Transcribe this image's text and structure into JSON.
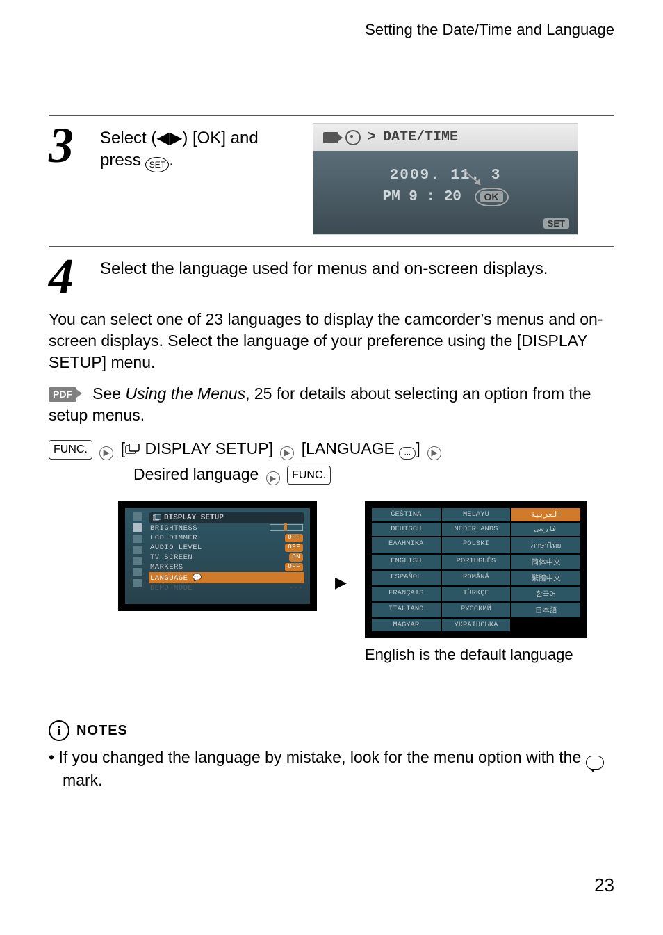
{
  "header": {
    "section": "Setting the Date/Time and Language"
  },
  "step3": {
    "num": "3",
    "text_a": "Select (",
    "text_b": ") [OK] and press ",
    "text_c": ".",
    "osd": {
      "crumb_prefix": ">",
      "crumb": "DATE/TIME",
      "date_line": "2009. 11.  3",
      "time_line": "PM  9 : 20",
      "ok": "OK",
      "set": "SET"
    }
  },
  "step4": {
    "num": "4",
    "text": "Select the language used for menus and on-screen displays."
  },
  "para1": "You can select one of 23 languages to display the camcorder’s menus and on-screen displays. Select the language of your preference using the [DISPLAY SETUP] menu.",
  "pdf": {
    "badge": "PDF",
    "text_a": " See ",
    "text_b": "Using the Menus",
    "text_c": ", 25 for details about selecting an option from the setup menus."
  },
  "path": {
    "func": "FUNC.",
    "display_setup": "DISPLAY SETUP",
    "language": "LANGUAGE",
    "desired": "Desired language"
  },
  "display_setup_shot": {
    "title": "DISPLAY SETUP",
    "rows": [
      {
        "label": "BRIGHTNESS",
        "value_type": "slider"
      },
      {
        "label": "LCD DIMMER",
        "value": "OFF"
      },
      {
        "label": "AUDIO LEVEL",
        "value": "OFF"
      },
      {
        "label": "TV SCREEN",
        "value": "ON"
      },
      {
        "label": "MARKERS",
        "value": "OFF"
      },
      {
        "label": "LANGUAGE",
        "selected": true
      },
      {
        "label": "DEMO MODE",
        "dim": true,
        "value": "---"
      }
    ]
  },
  "lang_shot": {
    "cells": [
      "ČEŠTINA",
      "MELAYU",
      "العربية",
      "DEUTSCH",
      "NEDERLANDS",
      "فارسی",
      "ΕΛΛΗΝΙΚΑ",
      "POLSKI",
      "ภาษาไทย",
      "ENGLISH",
      "PORTUGUÊS",
      "简体中文",
      "ESPAÑOL",
      "ROMÂNĂ",
      "繁體中文",
      "FRANÇAIS",
      "TÜRKÇE",
      "한국어",
      "ITALIANO",
      "РУССКИЙ",
      "日本語",
      "MAGYAR",
      "УКРАЇНСЬКА",
      ""
    ],
    "selected_index": 2,
    "caption": "English is the default language"
  },
  "notes": {
    "heading": "NOTES",
    "bullet_a": "If you changed the language by mistake, look for the menu option with the ",
    "bullet_b": " mark."
  },
  "pagenum": "23",
  "glyphs": {
    "left_tri": "◀",
    "right_tri": "▶",
    "set": "SET",
    "play": "▶",
    "dots": "…"
  }
}
